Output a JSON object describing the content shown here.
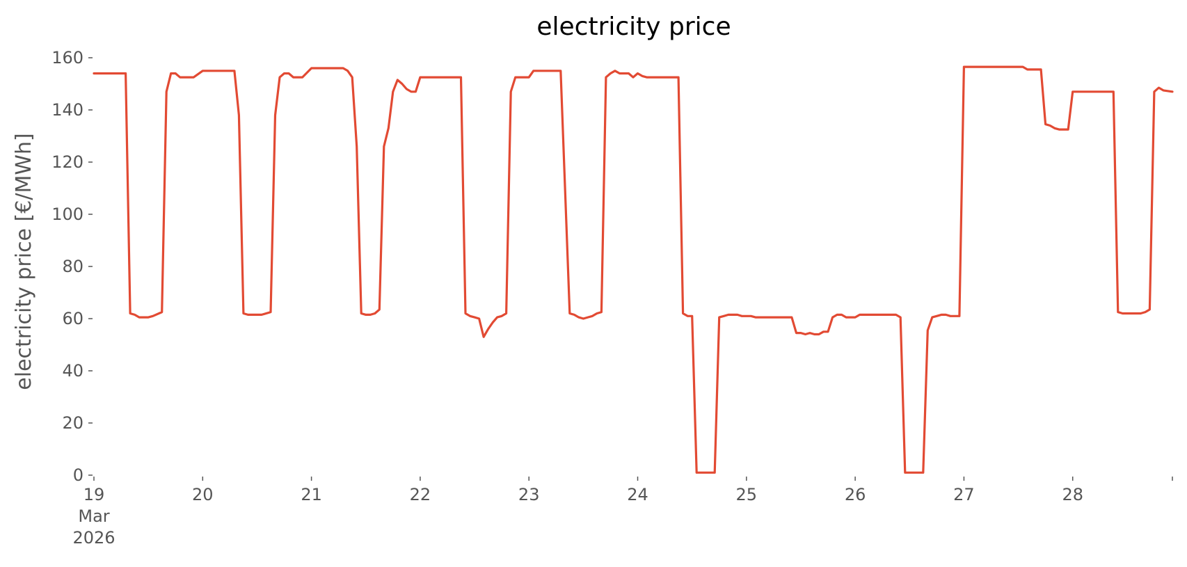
{
  "chart_data": {
    "type": "line",
    "title": "electricity price",
    "xlabel": "",
    "ylabel": "electricity price [€/MWh]",
    "grid": false,
    "legend": "none",
    "ylim": [
      0,
      160
    ],
    "yticks": [
      0,
      20,
      40,
      60,
      80,
      100,
      120,
      140,
      160
    ],
    "xlim": [
      "2026-03-19 00:00",
      "2026-03-28 22:00"
    ],
    "xticks": [
      {
        "x": "2026-03-19 00:00",
        "label": "19",
        "sub": [
          "Mar",
          "2026"
        ]
      },
      {
        "x": "2026-03-20 00:00",
        "label": "20"
      },
      {
        "x": "2026-03-21 00:00",
        "label": "21"
      },
      {
        "x": "2026-03-22 00:00",
        "label": "22"
      },
      {
        "x": "2026-03-23 00:00",
        "label": "23"
      },
      {
        "x": "2026-03-24 00:00",
        "label": "24"
      },
      {
        "x": "2026-03-25 00:00",
        "label": "25"
      },
      {
        "x": "2026-03-26 00:00",
        "label": "26"
      },
      {
        "x": "2026-03-27 00:00",
        "label": "27"
      },
      {
        "x": "2026-03-28 00:00",
        "label": "28"
      },
      {
        "x": "2026-03-28 22:00",
        "label": ""
      }
    ],
    "series": [
      {
        "color": "#e24a33",
        "points": [
          [
            "2026-03-19 00:00",
            154
          ],
          [
            "2026-03-19 07:00",
            154
          ],
          [
            "2026-03-19 08:00",
            62
          ],
          [
            "2026-03-19 09:00",
            61.5
          ],
          [
            "2026-03-19 10:00",
            60.5
          ],
          [
            "2026-03-19 11:00",
            60.5
          ],
          [
            "2026-03-19 12:00",
            60.5
          ],
          [
            "2026-03-19 13:00",
            61
          ],
          [
            "2026-03-19 15:00",
            62.5
          ],
          [
            "2026-03-19 16:00",
            147
          ],
          [
            "2026-03-19 17:00",
            154
          ],
          [
            "2026-03-19 18:00",
            154
          ],
          [
            "2026-03-19 19:00",
            152.5
          ],
          [
            "2026-03-19 20:00",
            152.5
          ],
          [
            "2026-03-19 22:00",
            152.5
          ],
          [
            "2026-03-20 00:00",
            155
          ],
          [
            "2026-03-20 07:00",
            155
          ],
          [
            "2026-03-20 08:00",
            138
          ],
          [
            "2026-03-20 09:00",
            62
          ],
          [
            "2026-03-20 10:00",
            61.5
          ],
          [
            "2026-03-20 11:00",
            61.5
          ],
          [
            "2026-03-20 13:00",
            61.5
          ],
          [
            "2026-03-20 15:00",
            62.5
          ],
          [
            "2026-03-20 16:00",
            138
          ],
          [
            "2026-03-20 17:00",
            152.5
          ],
          [
            "2026-03-20 18:00",
            154
          ],
          [
            "2026-03-20 19:00",
            154
          ],
          [
            "2026-03-20 20:00",
            152.5
          ],
          [
            "2026-03-20 22:00",
            152.5
          ],
          [
            "2026-03-21 00:00",
            156
          ],
          [
            "2026-03-21 07:00",
            156
          ],
          [
            "2026-03-21 08:00",
            155
          ],
          [
            "2026-03-21 09:00",
            152.5
          ],
          [
            "2026-03-21 10:00",
            126
          ],
          [
            "2026-03-21 11:00",
            62
          ],
          [
            "2026-03-21 12:00",
            61.5
          ],
          [
            "2026-03-21 13:00",
            61.5
          ],
          [
            "2026-03-21 14:00",
            62
          ],
          [
            "2026-03-21 15:00",
            63.5
          ],
          [
            "2026-03-21 16:00",
            126
          ],
          [
            "2026-03-21 17:00",
            133
          ],
          [
            "2026-03-21 18:00",
            147
          ],
          [
            "2026-03-21 19:00",
            151.5
          ],
          [
            "2026-03-21 20:00",
            150
          ],
          [
            "2026-03-21 21:00",
            148
          ],
          [
            "2026-03-21 22:00",
            147
          ],
          [
            "2026-03-21 23:00",
            147
          ],
          [
            "2026-03-22 00:00",
            152.5
          ],
          [
            "2026-03-22 09:00",
            152.5
          ],
          [
            "2026-03-22 10:00",
            62
          ],
          [
            "2026-03-22 11:00",
            61
          ],
          [
            "2026-03-22 12:00",
            60.5
          ],
          [
            "2026-03-22 13:00",
            60
          ],
          [
            "2026-03-22 14:00",
            53
          ],
          [
            "2026-03-22 15:00",
            56
          ],
          [
            "2026-03-22 16:00",
            58.5
          ],
          [
            "2026-03-22 17:00",
            60.5
          ],
          [
            "2026-03-22 18:00",
            61
          ],
          [
            "2026-03-22 19:00",
            62
          ],
          [
            "2026-03-22 20:00",
            147
          ],
          [
            "2026-03-22 21:00",
            152.5
          ],
          [
            "2026-03-23 00:00",
            152.5
          ],
          [
            "2026-03-23 01:00",
            155
          ],
          [
            "2026-03-23 07:00",
            155
          ],
          [
            "2026-03-23 09:00",
            62
          ],
          [
            "2026-03-23 10:00",
            61.5
          ],
          [
            "2026-03-23 11:00",
            60.5
          ],
          [
            "2026-03-23 12:00",
            60
          ],
          [
            "2026-03-23 13:00",
            60.5
          ],
          [
            "2026-03-23 14:00",
            61
          ],
          [
            "2026-03-23 15:00",
            62
          ],
          [
            "2026-03-23 16:00",
            62.5
          ],
          [
            "2026-03-23 17:00",
            152.5
          ],
          [
            "2026-03-23 18:00",
            154
          ],
          [
            "2026-03-23 19:00",
            155
          ],
          [
            "2026-03-23 20:00",
            154
          ],
          [
            "2026-03-23 21:00",
            154
          ],
          [
            "2026-03-23 22:00",
            154
          ],
          [
            "2026-03-23 23:00",
            152.5
          ],
          [
            "2026-03-24 00:00",
            154
          ],
          [
            "2026-03-24 01:00",
            153
          ],
          [
            "2026-03-24 02:00",
            152.5
          ],
          [
            "2026-03-24 09:00",
            152.5
          ],
          [
            "2026-03-24 10:00",
            62
          ],
          [
            "2026-03-24 11:00",
            61
          ],
          [
            "2026-03-24 12:00",
            61
          ],
          [
            "2026-03-24 13:00",
            1
          ],
          [
            "2026-03-24 14:00",
            1
          ],
          [
            "2026-03-24 17:00",
            1
          ],
          [
            "2026-03-24 18:00",
            60.5
          ],
          [
            "2026-03-24 19:00",
            61
          ],
          [
            "2026-03-24 20:00",
            61.5
          ],
          [
            "2026-03-24 21:00",
            61.5
          ],
          [
            "2026-03-24 22:00",
            61.5
          ],
          [
            "2026-03-24 23:00",
            61
          ],
          [
            "2026-03-25 00:00",
            61
          ],
          [
            "2026-03-25 01:00",
            61
          ],
          [
            "2026-03-25 02:00",
            60.5
          ],
          [
            "2026-03-25 10:00",
            60.5
          ],
          [
            "2026-03-25 11:00",
            54.5
          ],
          [
            "2026-03-25 12:00",
            54.5
          ],
          [
            "2026-03-25 13:00",
            54
          ],
          [
            "2026-03-25 14:00",
            54.5
          ],
          [
            "2026-03-25 15:00",
            54
          ],
          [
            "2026-03-25 16:00",
            54
          ],
          [
            "2026-03-25 17:00",
            55
          ],
          [
            "2026-03-25 18:00",
            55
          ],
          [
            "2026-03-25 19:00",
            60.5
          ],
          [
            "2026-03-25 20:00",
            61.5
          ],
          [
            "2026-03-25 21:00",
            61.5
          ],
          [
            "2026-03-25 22:00",
            60.5
          ],
          [
            "2026-03-26 00:00",
            60.5
          ],
          [
            "2026-03-26 01:00",
            61.5
          ],
          [
            "2026-03-26 09:00",
            61.5
          ],
          [
            "2026-03-26 10:00",
            60.5
          ],
          [
            "2026-03-26 11:00",
            1
          ],
          [
            "2026-03-26 12:00",
            1
          ],
          [
            "2026-03-26 15:00",
            1
          ],
          [
            "2026-03-26 16:00",
            55.5
          ],
          [
            "2026-03-26 17:00",
            60.5
          ],
          [
            "2026-03-26 18:00",
            61
          ],
          [
            "2026-03-26 19:00",
            61.5
          ],
          [
            "2026-03-26 20:00",
            61.5
          ],
          [
            "2026-03-26 21:00",
            61
          ],
          [
            "2026-03-26 23:00",
            61
          ],
          [
            "2026-03-27 00:00",
            156.5
          ],
          [
            "2026-03-27 13:00",
            156.5
          ],
          [
            "2026-03-27 14:00",
            155.5
          ],
          [
            "2026-03-27 17:00",
            155.5
          ],
          [
            "2026-03-27 18:00",
            134.5
          ],
          [
            "2026-03-27 19:00",
            134
          ],
          [
            "2026-03-27 20:00",
            133
          ],
          [
            "2026-03-27 21:00",
            132.5
          ],
          [
            "2026-03-27 23:00",
            132.5
          ],
          [
            "2026-03-28 00:00",
            147
          ],
          [
            "2026-03-28 01:00",
            147
          ],
          [
            "2026-03-28 09:00",
            147
          ],
          [
            "2026-03-28 10:00",
            62.5
          ],
          [
            "2026-03-28 11:00",
            62
          ],
          [
            "2026-03-28 12:00",
            62
          ],
          [
            "2026-03-28 13:00",
            62
          ],
          [
            "2026-03-28 14:00",
            62
          ],
          [
            "2026-03-28 15:00",
            62
          ],
          [
            "2026-03-28 16:00",
            62.5
          ],
          [
            "2026-03-28 17:00",
            63.5
          ],
          [
            "2026-03-28 18:00",
            147
          ],
          [
            "2026-03-28 19:00",
            148.5
          ],
          [
            "2026-03-28 20:00",
            147.5
          ],
          [
            "2026-03-28 22:00",
            147
          ]
        ]
      }
    ]
  }
}
